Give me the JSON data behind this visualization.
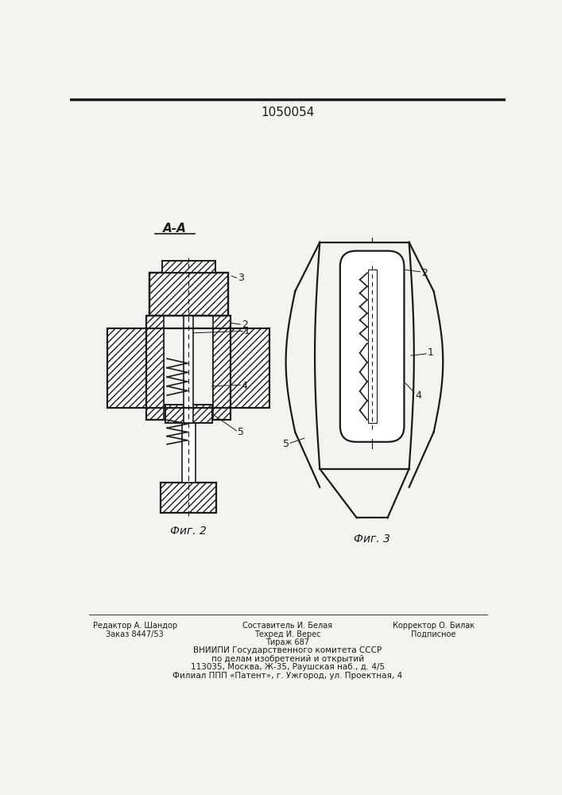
{
  "title": "1050054",
  "background_color": "#f5f3f0",
  "line_color": "#1a1a1a",
  "fig2_label": "Фиг. 2",
  "fig3_label": "Фиг. 3",
  "aa_label": "А-А",
  "footer_col1": [
    "Редактор А. Шандор",
    "Заказ 8447/53"
  ],
  "footer_col2": [
    "Составитель И. Белая",
    "Техред И. Верес",
    "Тираж 687",
    "ВНИИПИ Государственного комитета СССР",
    "по делам изобретений и открытий",
    "113035, Москва, Ж-35, Раушская наб., д. 4/5",
    "Филиал ППП «Патент», г. Ужгород, ул. Проектная, 4"
  ],
  "footer_col3": [
    "Корректор О. Билак",
    "Подписное"
  ]
}
